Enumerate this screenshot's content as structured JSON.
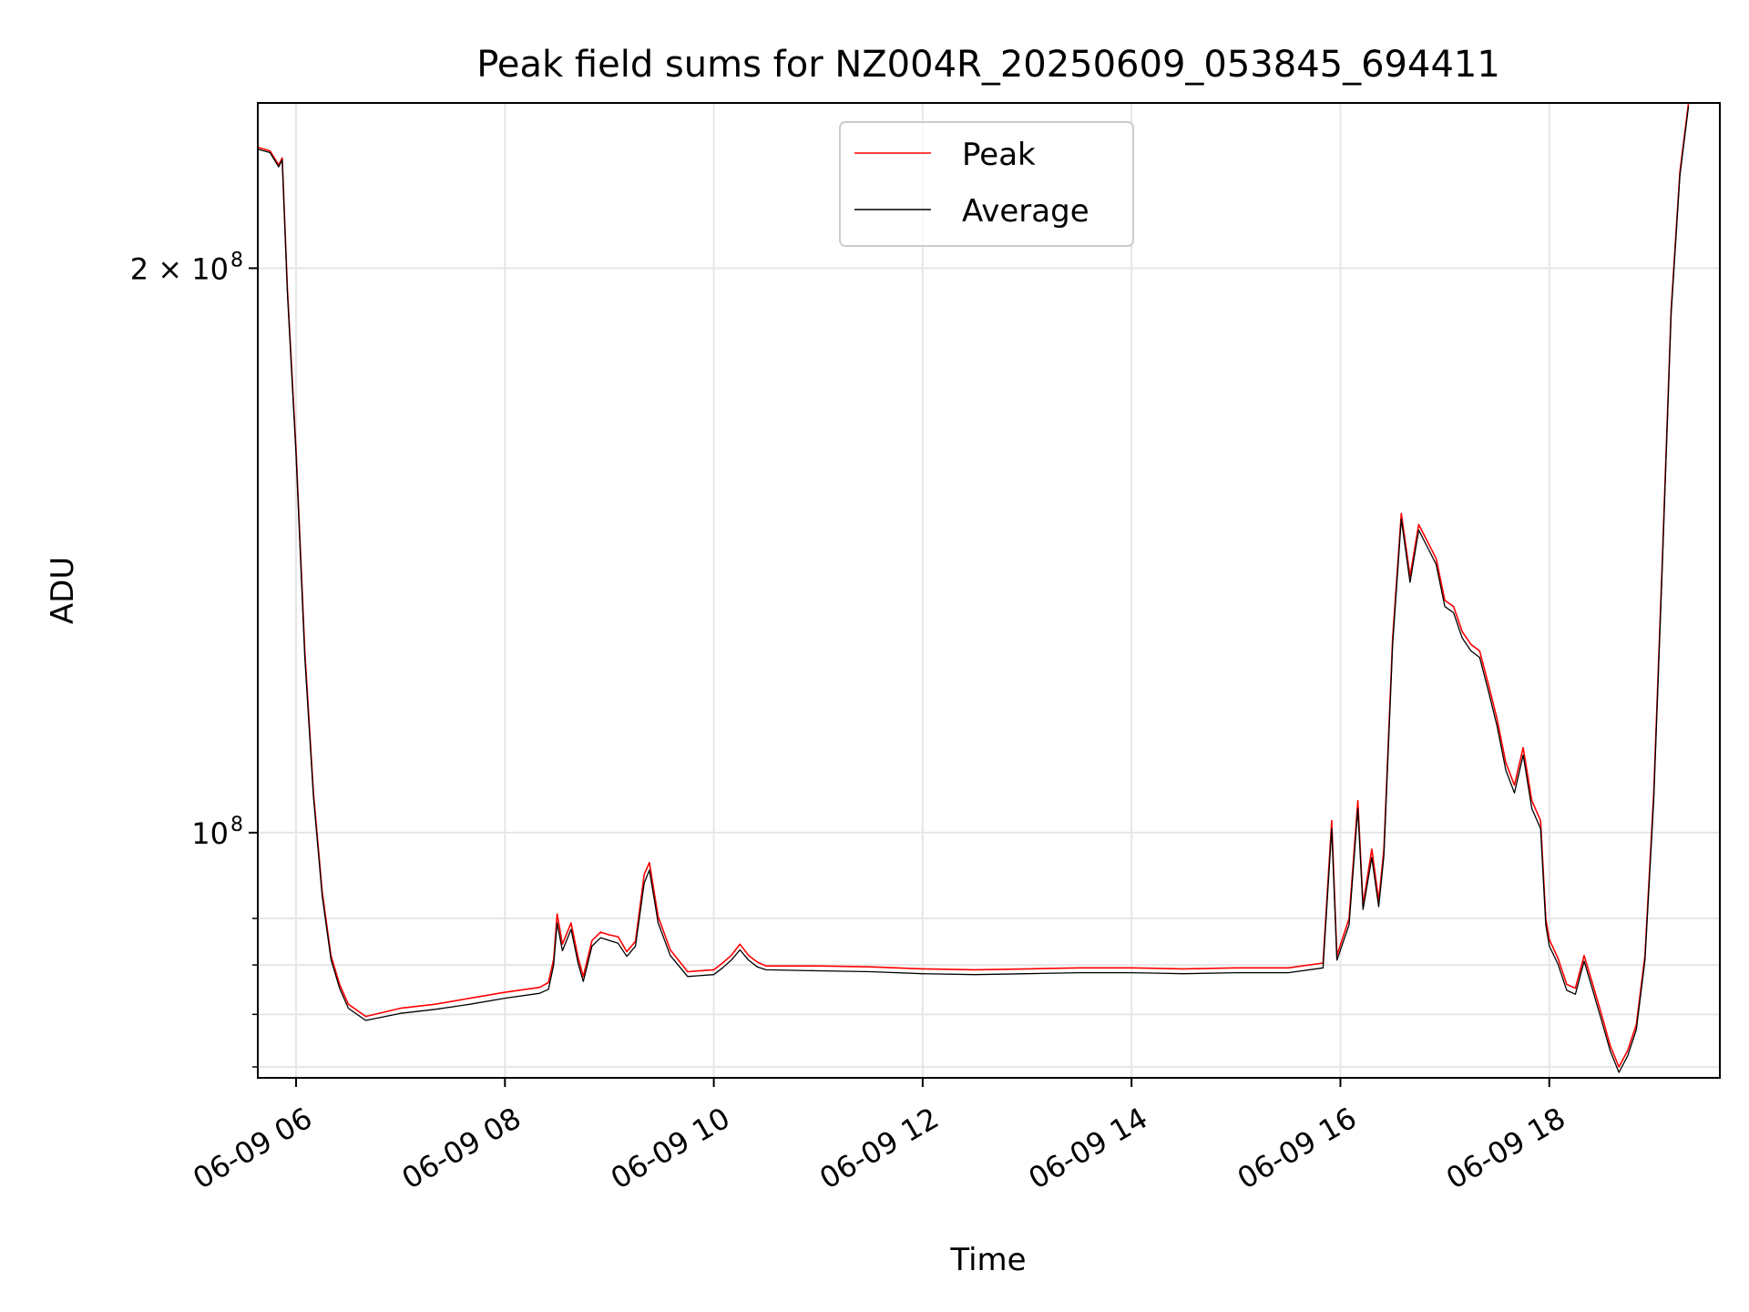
{
  "chart_data": {
    "type": "line",
    "title": "Peak field sums for NZ004R_20250609_053845_694411",
    "xlabel": "Time",
    "ylabel": "ADU",
    "xlim": [
      "2025-06-09 05:38",
      "2025-06-09 19:38"
    ],
    "ylim": [
      74000000,
      245000000
    ],
    "yscale": "log",
    "grid": true,
    "legend_position": "top-center",
    "x_tick_labels": [
      "06-09 06",
      "06-09 08",
      "06-09 10",
      "06-09 12",
      "06-09 14",
      "06-09 16",
      "06-09 18"
    ],
    "x_tick_values": [
      "2025-06-09 06:00",
      "2025-06-09 08:00",
      "2025-06-09 10:00",
      "2025-06-09 12:00",
      "2025-06-09 14:00",
      "2025-06-09 16:00",
      "2025-06-09 18:00"
    ],
    "y_major_ticks": [
      {
        "value": 100000000,
        "base": "10",
        "exp": "8"
      },
      {
        "value": 200000000,
        "base": "2 × 10",
        "exp": "8"
      }
    ],
    "y_minor_ticks": [
      75000000,
      80000000,
      85000000,
      90000000
    ],
    "series": [
      {
        "name": "Peak",
        "color": "#ff0000",
        "points": [
          [
            "2025-06-09 05:38",
            232000000
          ],
          [
            "2025-06-09 05:45",
            231000000
          ],
          [
            "2025-06-09 05:50",
            227000000
          ],
          [
            "2025-06-09 05:52",
            229000000
          ],
          [
            "2025-06-09 05:55",
            195000000
          ],
          [
            "2025-06-09 06:00",
            160000000
          ],
          [
            "2025-06-09 06:05",
            125000000
          ],
          [
            "2025-06-09 06:10",
            105000000
          ],
          [
            "2025-06-09 06:15",
            93000000
          ],
          [
            "2025-06-09 06:20",
            86000000
          ],
          [
            "2025-06-09 06:25",
            83000000
          ],
          [
            "2025-06-09 06:30",
            81000000
          ],
          [
            "2025-06-09 06:40",
            79800000
          ],
          [
            "2025-06-09 07:00",
            80600000
          ],
          [
            "2025-06-09 07:20",
            81000000
          ],
          [
            "2025-06-09 07:40",
            81600000
          ],
          [
            "2025-06-09 08:00",
            82200000
          ],
          [
            "2025-06-09 08:20",
            82700000
          ],
          [
            "2025-06-09 08:25",
            83200000
          ],
          [
            "2025-06-09 08:28",
            85600000
          ],
          [
            "2025-06-09 08:30",
            90500000
          ],
          [
            "2025-06-09 08:33",
            87200000
          ],
          [
            "2025-06-09 08:38",
            89500000
          ],
          [
            "2025-06-09 08:42",
            85800000
          ],
          [
            "2025-06-09 08:45",
            83800000
          ],
          [
            "2025-06-09 08:50",
            87600000
          ],
          [
            "2025-06-09 08:55",
            88500000
          ],
          [
            "2025-06-09 09:00",
            88200000
          ],
          [
            "2025-06-09 09:05",
            88000000
          ],
          [
            "2025-06-09 09:10",
            86400000
          ],
          [
            "2025-06-09 09:15",
            87500000
          ],
          [
            "2025-06-09 09:20",
            95000000
          ],
          [
            "2025-06-09 09:23",
            96400000
          ],
          [
            "2025-06-09 09:28",
            90200000
          ],
          [
            "2025-06-09 09:35",
            86600000
          ],
          [
            "2025-06-09 09:45",
            84300000
          ],
          [
            "2025-06-09 10:00",
            84500000
          ],
          [
            "2025-06-09 10:05",
            85200000
          ],
          [
            "2025-06-09 10:10",
            86000000
          ],
          [
            "2025-06-09 10:15",
            87200000
          ],
          [
            "2025-06-09 10:20",
            86000000
          ],
          [
            "2025-06-09 10:25",
            85300000
          ],
          [
            "2025-06-09 10:30",
            84900000
          ],
          [
            "2025-06-09 11:00",
            84900000
          ],
          [
            "2025-06-09 11:30",
            84800000
          ],
          [
            "2025-06-09 12:00",
            84600000
          ],
          [
            "2025-06-09 12:30",
            84500000
          ],
          [
            "2025-06-09 13:00",
            84600000
          ],
          [
            "2025-06-09 13:30",
            84700000
          ],
          [
            "2025-06-09 14:00",
            84700000
          ],
          [
            "2025-06-09 14:30",
            84600000
          ],
          [
            "2025-06-09 15:00",
            84700000
          ],
          [
            "2025-06-09 15:30",
            84700000
          ],
          [
            "2025-06-09 15:50",
            85200000
          ],
          [
            "2025-06-09 15:55",
            101500000
          ],
          [
            "2025-06-09 15:58",
            86000000
          ],
          [
            "2025-06-09 16:05",
            90000000
          ],
          [
            "2025-06-09 16:10",
            104000000
          ],
          [
            "2025-06-09 16:13",
            91500000
          ],
          [
            "2025-06-09 16:18",
            98000000
          ],
          [
            "2025-06-09 16:22",
            92000000
          ],
          [
            "2025-06-09 16:25",
            98000000
          ],
          [
            "2025-06-09 16:30",
            127000000
          ],
          [
            "2025-06-09 16:35",
            148000000
          ],
          [
            "2025-06-09 16:40",
            137000000
          ],
          [
            "2025-06-09 16:45",
            146000000
          ],
          [
            "2025-06-09 16:50",
            143000000
          ],
          [
            "2025-06-09 16:55",
            140000000
          ],
          [
            "2025-06-09 17:00",
            133000000
          ],
          [
            "2025-06-09 17:05",
            132000000
          ],
          [
            "2025-06-09 17:10",
            128000000
          ],
          [
            "2025-06-09 17:15",
            126000000
          ],
          [
            "2025-06-09 17:20",
            125000000
          ],
          [
            "2025-06-09 17:25",
            120000000
          ],
          [
            "2025-06-09 17:30",
            115000000
          ],
          [
            "2025-06-09 17:35",
            109000000
          ],
          [
            "2025-06-09 17:40",
            106000000
          ],
          [
            "2025-06-09 17:45",
            111000000
          ],
          [
            "2025-06-09 17:50",
            104000000
          ],
          [
            "2025-06-09 17:55",
            101500000
          ],
          [
            "2025-06-09 17:58",
            90000000
          ],
          [
            "2025-06-09 18:00",
            87700000
          ],
          [
            "2025-06-09 18:05",
            85700000
          ],
          [
            "2025-06-09 18:10",
            83000000
          ],
          [
            "2025-06-09 18:15",
            82600000
          ],
          [
            "2025-06-09 18:20",
            86000000
          ],
          [
            "2025-06-09 18:25",
            83000000
          ],
          [
            "2025-06-09 18:30",
            80000000
          ],
          [
            "2025-06-09 18:35",
            77000000
          ],
          [
            "2025-06-09 18:40",
            75000000
          ],
          [
            "2025-06-09 18:45",
            76500000
          ],
          [
            "2025-06-09 18:50",
            79000000
          ],
          [
            "2025-06-09 18:55",
            86000000
          ],
          [
            "2025-06-09 19:00",
            105000000
          ],
          [
            "2025-06-09 19:05",
            140000000
          ],
          [
            "2025-06-09 19:10",
            190000000
          ],
          [
            "2025-06-09 19:15",
            225000000
          ],
          [
            "2025-06-09 19:20",
            245000000
          ]
        ]
      },
      {
        "name": "Average",
        "color": "#000000",
        "points": [
          [
            "2025-06-09 05:38",
            231500000
          ],
          [
            "2025-06-09 05:45",
            230500000
          ],
          [
            "2025-06-09 05:50",
            226500000
          ],
          [
            "2025-06-09 05:52",
            228500000
          ],
          [
            "2025-06-09 05:55",
            194000000
          ],
          [
            "2025-06-09 06:00",
            159000000
          ],
          [
            "2025-06-09 06:05",
            124000000
          ],
          [
            "2025-06-09 06:10",
            104500000
          ],
          [
            "2025-06-09 06:15",
            92500000
          ],
          [
            "2025-06-09 06:20",
            85600000
          ],
          [
            "2025-06-09 06:25",
            82600000
          ],
          [
            "2025-06-09 06:30",
            80600000
          ],
          [
            "2025-06-09 06:40",
            79400000
          ],
          [
            "2025-06-09 07:00",
            80100000
          ],
          [
            "2025-06-09 07:20",
            80500000
          ],
          [
            "2025-06-09 07:40",
            81000000
          ],
          [
            "2025-06-09 08:00",
            81600000
          ],
          [
            "2025-06-09 08:20",
            82100000
          ],
          [
            "2025-06-09 08:25",
            82500000
          ],
          [
            "2025-06-09 08:28",
            85000000
          ],
          [
            "2025-06-09 08:30",
            89500000
          ],
          [
            "2025-06-09 08:33",
            86500000
          ],
          [
            "2025-06-09 08:38",
            88800000
          ],
          [
            "2025-06-09 08:42",
            85200000
          ],
          [
            "2025-06-09 08:45",
            83300000
          ],
          [
            "2025-06-09 08:50",
            87000000
          ],
          [
            "2025-06-09 08:55",
            87900000
          ],
          [
            "2025-06-09 09:00",
            87600000
          ],
          [
            "2025-06-09 09:05",
            87300000
          ],
          [
            "2025-06-09 09:10",
            85900000
          ],
          [
            "2025-06-09 09:15",
            87000000
          ],
          [
            "2025-06-09 09:20",
            94000000
          ],
          [
            "2025-06-09 09:23",
            95500000
          ],
          [
            "2025-06-09 09:28",
            89500000
          ],
          [
            "2025-06-09 09:35",
            86000000
          ],
          [
            "2025-06-09 09:45",
            83800000
          ],
          [
            "2025-06-09 10:00",
            84000000
          ],
          [
            "2025-06-09 10:05",
            84700000
          ],
          [
            "2025-06-09 10:10",
            85500000
          ],
          [
            "2025-06-09 10:15",
            86600000
          ],
          [
            "2025-06-09 10:20",
            85500000
          ],
          [
            "2025-06-09 10:25",
            84800000
          ],
          [
            "2025-06-09 10:30",
            84500000
          ],
          [
            "2025-06-09 11:00",
            84400000
          ],
          [
            "2025-06-09 11:30",
            84300000
          ],
          [
            "2025-06-09 12:00",
            84100000
          ],
          [
            "2025-06-09 12:30",
            84000000
          ],
          [
            "2025-06-09 13:00",
            84100000
          ],
          [
            "2025-06-09 13:30",
            84200000
          ],
          [
            "2025-06-09 14:00",
            84200000
          ],
          [
            "2025-06-09 14:30",
            84100000
          ],
          [
            "2025-06-09 15:00",
            84200000
          ],
          [
            "2025-06-09 15:30",
            84200000
          ],
          [
            "2025-06-09 15:50",
            84700000
          ],
          [
            "2025-06-09 15:55",
            100500000
          ],
          [
            "2025-06-09 15:58",
            85500000
          ],
          [
            "2025-06-09 16:05",
            89300000
          ],
          [
            "2025-06-09 16:10",
            103000000
          ],
          [
            "2025-06-09 16:13",
            91000000
          ],
          [
            "2025-06-09 16:18",
            97000000
          ],
          [
            "2025-06-09 16:22",
            91300000
          ],
          [
            "2025-06-09 16:25",
            97200000
          ],
          [
            "2025-06-09 16:30",
            126000000
          ],
          [
            "2025-06-09 16:35",
            147000000
          ],
          [
            "2025-06-09 16:40",
            136000000
          ],
          [
            "2025-06-09 16:45",
            145000000
          ],
          [
            "2025-06-09 16:50",
            142000000
          ],
          [
            "2025-06-09 16:55",
            139000000
          ],
          [
            "2025-06-09 17:00",
            132000000
          ],
          [
            "2025-06-09 17:05",
            131000000
          ],
          [
            "2025-06-09 17:10",
            127000000
          ],
          [
            "2025-06-09 17:15",
            125000000
          ],
          [
            "2025-06-09 17:20",
            124000000
          ],
          [
            "2025-06-09 17:25",
            119000000
          ],
          [
            "2025-06-09 17:30",
            114000000
          ],
          [
            "2025-06-09 17:35",
            108000000
          ],
          [
            "2025-06-09 17:40",
            105000000
          ],
          [
            "2025-06-09 17:45",
            110000000
          ],
          [
            "2025-06-09 17:50",
            103000000
          ],
          [
            "2025-06-09 17:55",
            100500000
          ],
          [
            "2025-06-09 17:58",
            89300000
          ],
          [
            "2025-06-09 18:00",
            87000000
          ],
          [
            "2025-06-09 18:05",
            85100000
          ],
          [
            "2025-06-09 18:10",
            82400000
          ],
          [
            "2025-06-09 18:15",
            82000000
          ],
          [
            "2025-06-09 18:20",
            85400000
          ],
          [
            "2025-06-09 18:25",
            82400000
          ],
          [
            "2025-06-09 18:30",
            79400000
          ],
          [
            "2025-06-09 18:35",
            76500000
          ],
          [
            "2025-06-09 18:40",
            74500000
          ],
          [
            "2025-06-09 18:45",
            76000000
          ],
          [
            "2025-06-09 18:50",
            78500000
          ],
          [
            "2025-06-09 18:55",
            85500000
          ],
          [
            "2025-06-09 19:00",
            104000000
          ],
          [
            "2025-06-09 19:05",
            139000000
          ],
          [
            "2025-06-09 19:10",
            189000000
          ],
          [
            "2025-06-09 19:15",
            224000000
          ],
          [
            "2025-06-09 19:20",
            244000000
          ]
        ]
      }
    ]
  }
}
